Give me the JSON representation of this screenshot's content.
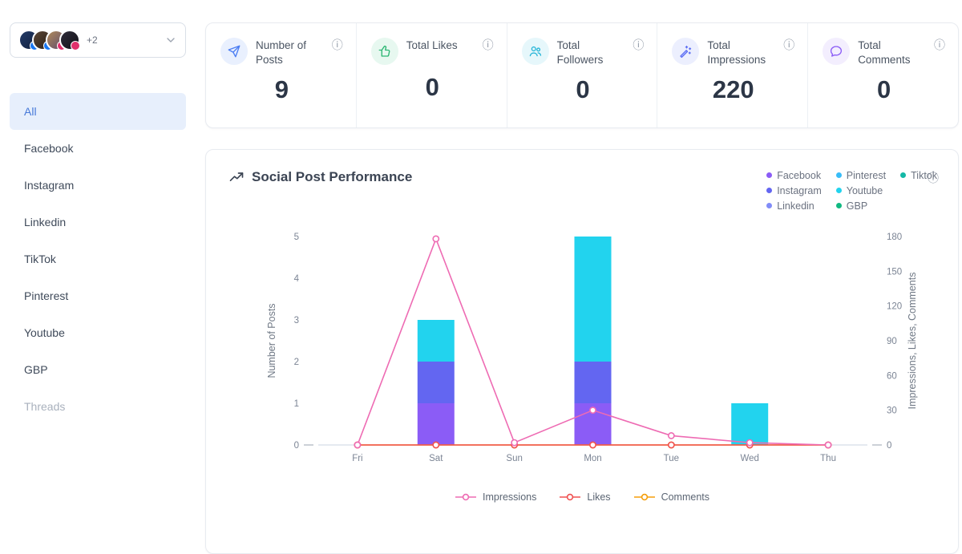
{
  "sidebar": {
    "account_selector": {
      "extra_count": "+2"
    },
    "items": [
      {
        "label": "All",
        "state": "active"
      },
      {
        "label": "Facebook",
        "state": "normal"
      },
      {
        "label": "Instagram",
        "state": "normal"
      },
      {
        "label": "Linkedin",
        "state": "normal"
      },
      {
        "label": "TikTok",
        "state": "normal"
      },
      {
        "label": "Pinterest",
        "state": "normal"
      },
      {
        "label": "Youtube",
        "state": "normal"
      },
      {
        "label": "GBP",
        "state": "normal"
      },
      {
        "label": "Threads",
        "state": "disabled"
      }
    ]
  },
  "stats": [
    {
      "label": "Number of Posts",
      "value": "9",
      "icon": "paper-plane-icon",
      "color": "#4c7ef3",
      "bg": "#e9f0fe"
    },
    {
      "label": "Total Likes",
      "value": "0",
      "icon": "thumbs-up-icon",
      "color": "#2bb673",
      "bg": "#e7f8f0"
    },
    {
      "label": "Total Followers",
      "value": "0",
      "icon": "followers-icon",
      "color": "#29b6d8",
      "bg": "#e6f7fb"
    },
    {
      "label": "Total Impressions",
      "value": "220",
      "icon": "magic-wand-icon",
      "color": "#5a6cf3",
      "bg": "#eceffe"
    },
    {
      "label": "Total Comments",
      "value": "0",
      "icon": "comment-icon",
      "color": "#8b5cf6",
      "bg": "#f3eefe"
    }
  ],
  "chart": {
    "title": "Social Post Performance",
    "platform_legend": [
      {
        "label": "Facebook",
        "color": "#8b5cf6"
      },
      {
        "label": "Instagram",
        "color": "#6366f1"
      },
      {
        "label": "Linkedin",
        "color": "#818cf8"
      },
      {
        "label": "Pinterest",
        "color": "#38bdf8"
      },
      {
        "label": "Youtube",
        "color": "#22d3ee"
      },
      {
        "label": "GBP",
        "color": "#10b981"
      },
      {
        "label": "Tiktok",
        "color": "#14b8a6"
      }
    ],
    "bottom_legend": [
      {
        "label": "Impressions",
        "color": "#ee6bb3"
      },
      {
        "label": "Likes",
        "color": "#f05252"
      },
      {
        "label": "Comments",
        "color": "#f59e0b"
      }
    ]
  },
  "chart_data": {
    "type": "mixed-stacked-bar-line",
    "categories": [
      "Fri",
      "Sat",
      "Sun",
      "Mon",
      "Tue",
      "Wed",
      "Thu"
    ],
    "left_axis": {
      "label": "Number of Posts",
      "min": 0,
      "max": 5,
      "ticks": [
        0,
        1,
        2,
        3,
        4,
        5
      ]
    },
    "right_axis": {
      "label": "Impressions, Likes, Comments",
      "min": 0,
      "max": 180,
      "ticks": [
        0,
        30,
        60,
        90,
        120,
        150,
        180
      ]
    },
    "bar_series": [
      {
        "name": "Facebook",
        "color": "#8b5cf6",
        "values": [
          0,
          1,
          0,
          1,
          0,
          0,
          0
        ]
      },
      {
        "name": "Instagram",
        "color": "#6366f1",
        "values": [
          0,
          1,
          0,
          1,
          0,
          0,
          0
        ]
      },
      {
        "name": "Youtube",
        "color": "#22d3ee",
        "values": [
          0,
          1,
          0,
          3,
          0,
          1,
          0
        ]
      }
    ],
    "line_series": [
      {
        "name": "Impressions",
        "color": "#ee6bb3",
        "values": [
          0,
          178,
          2,
          30,
          8,
          2,
          0
        ]
      },
      {
        "name": "Likes",
        "color": "#f05252",
        "values": [
          0,
          0,
          0,
          0,
          0,
          0,
          0
        ]
      },
      {
        "name": "Comments",
        "color": "#f59e0b",
        "values": [
          0,
          0,
          0,
          0,
          0,
          0,
          0
        ]
      }
    ],
    "legend_position": "top-right",
    "grid": false
  }
}
